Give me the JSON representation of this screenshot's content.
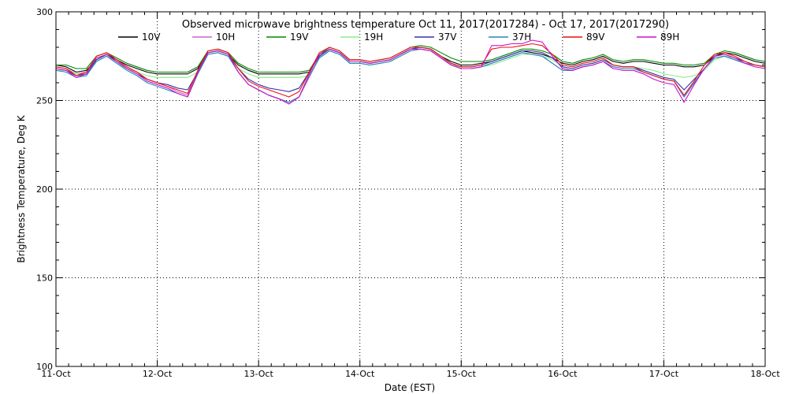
{
  "chart_data": {
    "type": "line",
    "title": "Observed microwave brightness temperature Oct 11, 2017(2017284) - Oct 17, 2017(2017290)",
    "xlabel": "Date (EST)",
    "ylabel": "Brightness Temperature, Deg K",
    "ylim": [
      100,
      300
    ],
    "yticks": [
      100,
      150,
      200,
      250,
      300
    ],
    "xlim": [
      0,
      7
    ],
    "xticks": [
      "11-Oct",
      "12-Oct",
      "13-Oct",
      "14-Oct",
      "15-Oct",
      "16-Oct",
      "17-Oct",
      "18-Oct"
    ],
    "grid": true,
    "legend_position": "top",
    "x": [
      0,
      0.1,
      0.2,
      0.3,
      0.4,
      0.5,
      0.6,
      0.7,
      0.8,
      0.9,
      1.0,
      1.1,
      1.2,
      1.3,
      1.4,
      1.5,
      1.6,
      1.7,
      1.8,
      1.9,
      2.0,
      2.1,
      2.2,
      2.3,
      2.4,
      2.5,
      2.6,
      2.7,
      2.8,
      2.9,
      3.0,
      3.1,
      3.2,
      3.3,
      3.4,
      3.5,
      3.6,
      3.7,
      3.8,
      3.9,
      4.0,
      4.1,
      4.2,
      4.3,
      4.4,
      4.5,
      4.6,
      4.7,
      4.8,
      4.9,
      5.0,
      5.1,
      5.2,
      5.3,
      5.4,
      5.5,
      5.6,
      5.7,
      5.8,
      5.9,
      6.0,
      6.1,
      6.2,
      6.3,
      6.4,
      6.5,
      6.6,
      6.7,
      6.8,
      6.9,
      7.0
    ],
    "series": [
      {
        "name": "10V",
        "color": "#000000",
        "values": [
          270,
          269,
          266,
          267,
          273,
          276,
          273,
          270,
          268,
          266,
          265,
          265,
          265,
          265,
          268,
          277,
          278,
          276,
          270,
          267,
          265,
          265,
          265,
          265,
          265,
          266,
          275,
          279,
          277,
          272,
          272,
          271,
          272,
          273,
          276,
          279,
          280,
          279,
          275,
          272,
          270,
          270,
          271,
          272,
          274,
          276,
          278,
          277,
          276,
          274,
          271,
          270,
          272,
          273,
          275,
          272,
          271,
          272,
          272,
          271,
          270,
          270,
          269,
          269,
          270,
          275,
          277,
          276,
          274,
          272,
          271
        ]
      },
      {
        "name": "10H",
        "color": "#cc66cc",
        "values": [
          269,
          268,
          265,
          266,
          272,
          275,
          272,
          269,
          266,
          262,
          260,
          258,
          255,
          253,
          265,
          276,
          277,
          275,
          266,
          259,
          256,
          253,
          251,
          249,
          252,
          263,
          274,
          278,
          276,
          271,
          271,
          270,
          271,
          272,
          275,
          278,
          279,
          278,
          274,
          270,
          268,
          268,
          269,
          271,
          273,
          275,
          277,
          276,
          275,
          271,
          267,
          267,
          269,
          270,
          272,
          269,
          268,
          268,
          266,
          264,
          262,
          261,
          252,
          260,
          268,
          274,
          275,
          273,
          271,
          270,
          269
        ]
      },
      {
        "name": "19V",
        "color": "#008800",
        "values": [
          270,
          270,
          268,
          268,
          275,
          277,
          274,
          271,
          269,
          267,
          266,
          266,
          266,
          266,
          269,
          278,
          279,
          277,
          271,
          268,
          266,
          266,
          266,
          266,
          266,
          267,
          276,
          280,
          278,
          273,
          273,
          272,
          273,
          274,
          277,
          280,
          281,
          280,
          277,
          274,
          272,
          272,
          272,
          273,
          275,
          277,
          279,
          279,
          278,
          276,
          272,
          271,
          273,
          274,
          276,
          273,
          272,
          273,
          273,
          272,
          271,
          271,
          270,
          270,
          271,
          276,
          278,
          277,
          275,
          273,
          272
        ]
      },
      {
        "name": "19H",
        "color": "#88ee88",
        "values": [
          267,
          267,
          265,
          265,
          272,
          275,
          271,
          268,
          266,
          264,
          263,
          263,
          263,
          263,
          266,
          276,
          277,
          275,
          268,
          265,
          263,
          263,
          263,
          263,
          263,
          264,
          274,
          278,
          276,
          271,
          271,
          270,
          271,
          272,
          275,
          278,
          279,
          278,
          274,
          271,
          268,
          268,
          269,
          270,
          272,
          274,
          276,
          276,
          275,
          273,
          269,
          268,
          270,
          271,
          273,
          270,
          269,
          269,
          268,
          267,
          265,
          264,
          263,
          264,
          267,
          273,
          275,
          274,
          272,
          270,
          269
        ]
      },
      {
        "name": "37V",
        "color": "#3333aa",
        "values": [
          268,
          267,
          264,
          265,
          273,
          276,
          272,
          268,
          265,
          262,
          260,
          259,
          257,
          256,
          266,
          277,
          278,
          276,
          268,
          262,
          259,
          257,
          256,
          255,
          257,
          266,
          275,
          279,
          277,
          272,
          272,
          271,
          272,
          273,
          276,
          279,
          280,
          279,
          275,
          271,
          269,
          269,
          270,
          272,
          274,
          276,
          278,
          278,
          277,
          274,
          269,
          268,
          270,
          271,
          273,
          270,
          269,
          269,
          267,
          265,
          263,
          262,
          256,
          262,
          268,
          275,
          276,
          274,
          272,
          270,
          269
        ]
      },
      {
        "name": "37H",
        "color": "#2288bb",
        "values": [
          267,
          266,
          263,
          264,
          272,
          275,
          271,
          267,
          264,
          260,
          258,
          256,
          254,
          252,
          265,
          276,
          277,
          275,
          266,
          259,
          256,
          253,
          251,
          249,
          252,
          264,
          274,
          278,
          276,
          271,
          271,
          270,
          271,
          272,
          275,
          278,
          279,
          278,
          274,
          270,
          268,
          268,
          269,
          271,
          273,
          275,
          277,
          276,
          275,
          271,
          267,
          267,
          269,
          270,
          272,
          269,
          268,
          268,
          266,
          264,
          262,
          261,
          252,
          260,
          268,
          274,
          275,
          273,
          271,
          270,
          269
        ]
      },
      {
        "name": "89V",
        "color": "#ee1111",
        "values": [
          269,
          268,
          264,
          266,
          275,
          277,
          273,
          269,
          266,
          262,
          260,
          258,
          256,
          254,
          267,
          278,
          279,
          277,
          268,
          261,
          258,
          256,
          254,
          252,
          255,
          266,
          277,
          280,
          278,
          273,
          273,
          272,
          273,
          274,
          277,
          280,
          280,
          279,
          275,
          271,
          269,
          269,
          270,
          279,
          280,
          280,
          281,
          282,
          281,
          276,
          270,
          269,
          271,
          272,
          274,
          270,
          269,
          269,
          266,
          264,
          262,
          261,
          253,
          261,
          270,
          276,
          277,
          275,
          272,
          270,
          269
        ]
      },
      {
        "name": "89H",
        "color": "#cc11cc",
        "values": [
          268,
          267,
          263,
          265,
          274,
          276,
          272,
          268,
          265,
          261,
          259,
          257,
          254,
          252,
          266,
          277,
          278,
          276,
          266,
          259,
          256,
          253,
          251,
          248,
          252,
          265,
          276,
          279,
          277,
          272,
          272,
          271,
          272,
          273,
          276,
          279,
          279,
          278,
          274,
          270,
          268,
          268,
          269,
          281,
          281,
          282,
          282,
          284,
          283,
          275,
          268,
          267,
          269,
          270,
          272,
          268,
          267,
          267,
          265,
          262,
          260,
          259,
          249,
          259,
          268,
          275,
          276,
          274,
          271,
          269,
          268
        ]
      }
    ]
  }
}
